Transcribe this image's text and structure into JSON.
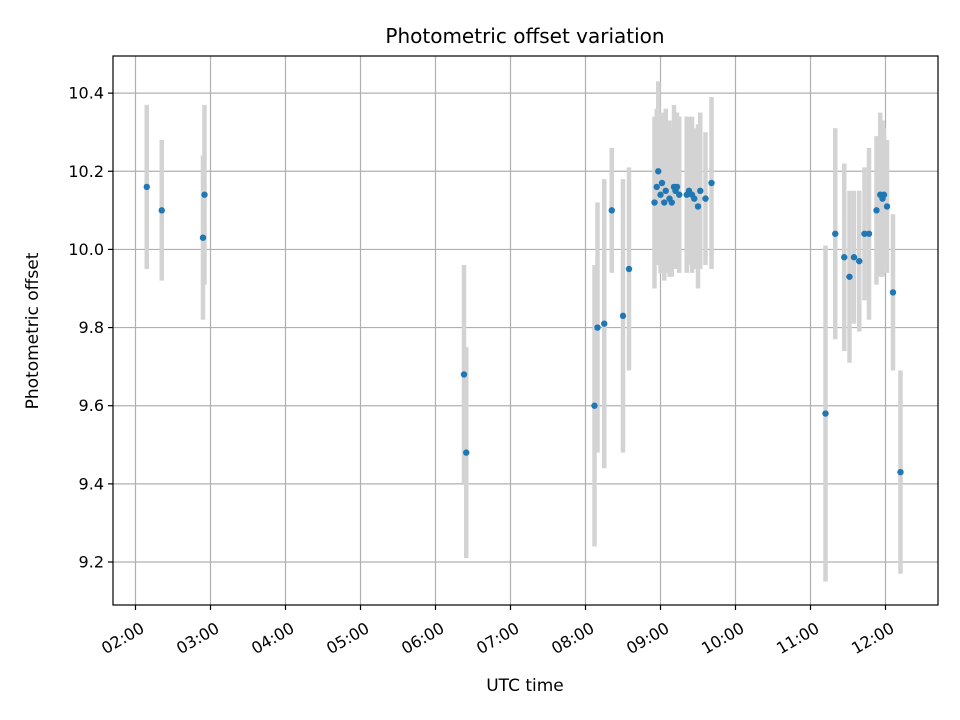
{
  "chart_data": {
    "type": "scatter",
    "title": "Photometric offset variation",
    "xlabel": "UTC time",
    "ylabel": "Photometric offset",
    "x_unit": "hours UTC",
    "xlim": [
      1.7,
      12.7
    ],
    "ylim": [
      9.09,
      10.495
    ],
    "x_ticks": [
      2,
      3,
      4,
      5,
      6,
      7,
      8,
      9,
      10,
      11,
      12
    ],
    "x_tick_labels": [
      "02:00",
      "03:00",
      "04:00",
      "05:00",
      "06:00",
      "07:00",
      "08:00",
      "09:00",
      "10:00",
      "11:00",
      "12:00"
    ],
    "y_ticks": [
      9.2,
      9.4,
      9.6,
      9.8,
      10.0,
      10.2,
      10.4
    ],
    "y_tick_labels": [
      "9.2",
      "9.4",
      "9.6",
      "9.8",
      "10.0",
      "10.2",
      "10.4"
    ],
    "grid": true,
    "legend": "none",
    "colors": {
      "points": "#1f77b4",
      "errorbars": "#d3d3d3",
      "grid": "#b0b0b0"
    },
    "series": [
      {
        "x": [
          2.15,
          2.35,
          2.9,
          2.92,
          6.38,
          6.41,
          8.12,
          8.16,
          8.25,
          8.35,
          8.5,
          8.58,
          8.92,
          8.95,
          8.97,
          9.0,
          9.02,
          9.05,
          9.07,
          9.12,
          9.15,
          9.18,
          9.2,
          9.22,
          9.25,
          9.35,
          9.38,
          9.42,
          9.45,
          9.5,
          9.53,
          9.6,
          9.68,
          11.2,
          11.33,
          11.45,
          11.52,
          11.58,
          11.65,
          11.72,
          11.78,
          11.88,
          11.93,
          11.96,
          11.98,
          12.02,
          12.1,
          12.2
        ],
        "y": [
          10.16,
          10.1,
          10.03,
          10.14,
          9.68,
          9.48,
          9.6,
          9.8,
          9.81,
          10.1,
          9.83,
          9.95,
          10.12,
          10.16,
          10.2,
          10.14,
          10.17,
          10.12,
          10.15,
          10.13,
          10.12,
          10.16,
          10.15,
          10.16,
          10.14,
          10.14,
          10.15,
          10.14,
          10.13,
          10.11,
          10.15,
          10.13,
          10.17,
          9.58,
          10.04,
          9.98,
          9.93,
          9.98,
          9.97,
          10.04,
          10.04,
          10.1,
          10.14,
          10.13,
          10.14,
          10.11,
          9.89,
          9.43
        ],
        "yerr": [
          0.21,
          0.18,
          0.21,
          0.23,
          0.28,
          0.27,
          0.36,
          0.32,
          0.37,
          0.16,
          0.35,
          0.26,
          0.22,
          0.2,
          0.23,
          0.2,
          0.18,
          0.2,
          0.21,
          0.2,
          0.19,
          0.21,
          0.2,
          0.19,
          0.2,
          0.2,
          0.19,
          0.2,
          0.18,
          0.21,
          0.2,
          0.17,
          0.22,
          0.43,
          0.27,
          0.24,
          0.22,
          0.17,
          0.18,
          0.17,
          0.22,
          0.19,
          0.21,
          0.2,
          0.17,
          0.17,
          0.2,
          0.26
        ]
      }
    ]
  }
}
